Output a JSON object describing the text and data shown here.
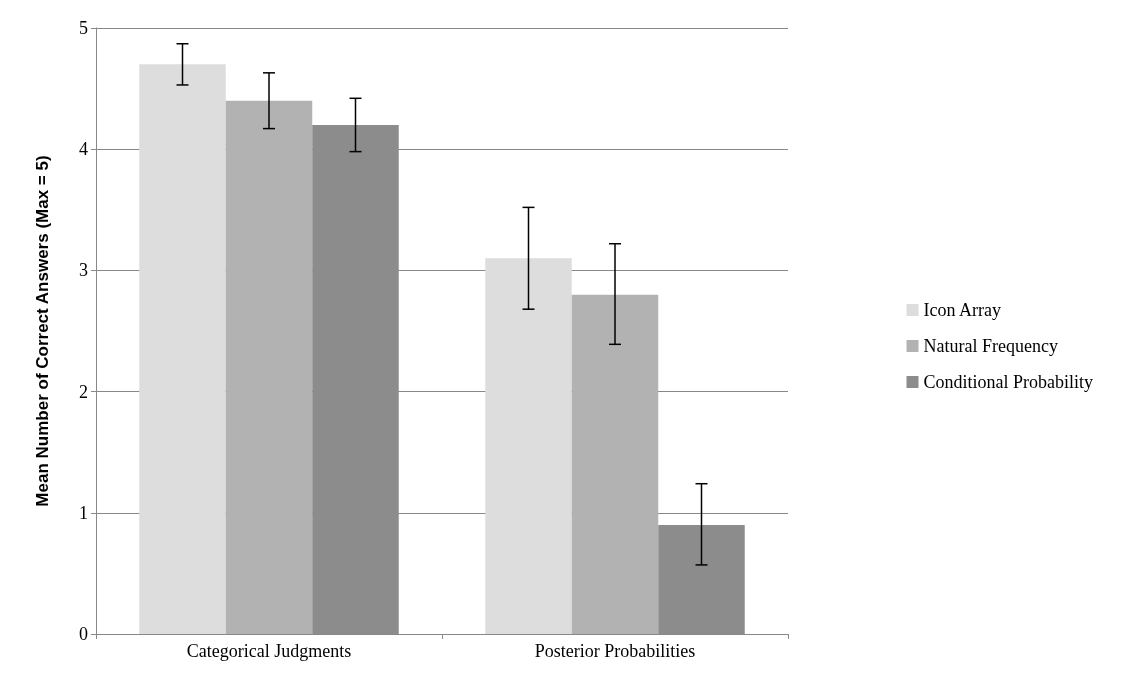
{
  "chart_data": {
    "type": "bar",
    "ylabel": "Mean Number of Correct Answers (Max = 5)",
    "categories": [
      "Categorical Judgments",
      "Posterior Probabilities"
    ],
    "series": [
      {
        "name": "Icon Array",
        "color": "#dddddd",
        "values": [
          4.7,
          3.1
        ],
        "errors": [
          [
            4.53,
            4.87
          ],
          [
            2.68,
            3.52
          ]
        ]
      },
      {
        "name": "Natural Frequency",
        "color": "#b2b2b2",
        "values": [
          4.4,
          2.8
        ],
        "errors": [
          [
            4.17,
            4.63
          ],
          [
            2.39,
            3.22
          ]
        ]
      },
      {
        "name": "Conditional Probability",
        "color": "#8c8c8c",
        "values": [
          4.2,
          0.9
        ],
        "errors": [
          [
            3.98,
            4.42
          ],
          [
            0.57,
            1.24
          ]
        ]
      }
    ],
    "ylim": [
      0,
      5
    ],
    "yticks": [
      0,
      1,
      2,
      3,
      4,
      5
    ],
    "grid": "y",
    "legend": "right"
  }
}
